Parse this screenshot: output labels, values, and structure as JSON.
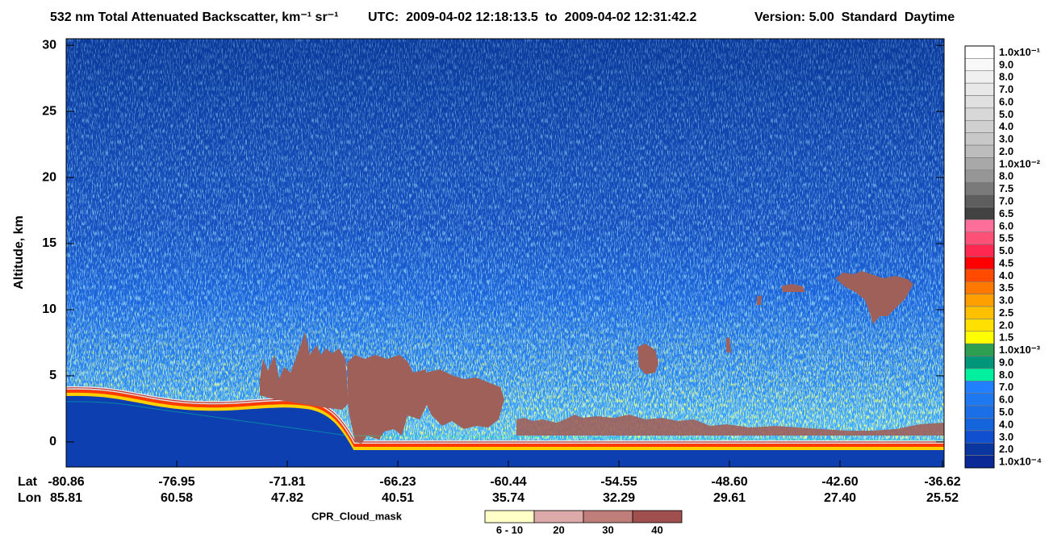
{
  "chart_data": {
    "type": "curtain",
    "title": "532 nm Total Attenuated Backscatter, km⁻¹ sr⁻¹",
    "time_range": "UTC:  2009-04-02 12:18:13.5  to  2009-04-02 12:31:42.2",
    "version": "Version: 5.00  Standard  Daytime",
    "ylabel": "Altitude, km",
    "ylim": [
      -1.9,
      30.5
    ],
    "yticks": [
      0,
      5,
      10,
      15,
      20,
      25,
      30
    ],
    "lat_label": "Lat",
    "lon_label": "Lon",
    "lat": [
      "-80.86",
      "-76.95",
      "-71.81",
      "-66.23",
      "-60.44",
      "-54.55",
      "-48.60",
      "-42.60",
      "-36.62"
    ],
    "lon": [
      "85.81",
      "60.58",
      "47.82",
      "40.51",
      "35.74",
      "32.29",
      "29.61",
      "27.40",
      "25.52"
    ],
    "colorbar": {
      "labels": [
        "1.0x10⁻¹",
        "9.0",
        "8.0",
        "7.0",
        "6.0",
        "5.0",
        "4.0",
        "3.0",
        "2.0",
        "1.0x10⁻²",
        "8.0",
        "7.5",
        "7.0",
        "6.5",
        "6.0",
        "5.5",
        "5.0",
        "4.5",
        "4.0",
        "3.5",
        "3.0",
        "2.5",
        "2.0",
        "1.5",
        "1.0x10⁻³",
        "9.0",
        "8.0",
        "7.0",
        "6.0",
        "5.0",
        "4.0",
        "3.0",
        "2.0",
        "1.0x10⁻⁴"
      ],
      "colors": [
        "#ffffff",
        "#f8f8f8",
        "#f0f0f0",
        "#e8e8e8",
        "#e0e0e0",
        "#d8d8d8",
        "#d0d0d0",
        "#c8c8c8",
        "#bcbcbc",
        "#a8a8a8",
        "#969696",
        "#7a7a7a",
        "#5e5e5e",
        "#424242",
        "#ff6f9a",
        "#ff5078",
        "#ff2850",
        "#ff0000",
        "#ff4a00",
        "#ff7800",
        "#ffa000",
        "#ffc000",
        "#ffe000",
        "#ffff00",
        "#2ca050",
        "#00967a",
        "#00f0a0",
        "#2080ff",
        "#1e78f0",
        "#1a6ee6",
        "#1464dc",
        "#1050d0",
        "#0a36a0",
        "#0a2896"
      ]
    },
    "cloud_mask": {
      "title": "CPR_Cloud_mask",
      "labels": [
        "6 - 10",
        "20",
        "30",
        "40"
      ],
      "colors": [
        "#ffffc8",
        "#dcaaa8",
        "#c07e7a",
        "#a04e4e"
      ]
    }
  }
}
